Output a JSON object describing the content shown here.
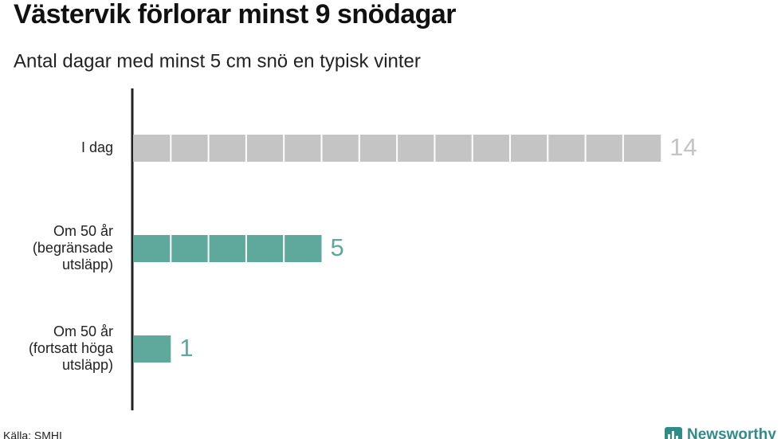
{
  "chart_data": {
    "type": "bar",
    "orientation": "horizontal",
    "title": "Västervik förlorar minst 9 snödagar",
    "subtitle": "Antal dagar med minst 5 cm snö en typisk vinter",
    "categories": [
      [
        "I dag"
      ],
      [
        "Om 50 år",
        "(begränsade",
        "utsläpp)"
      ],
      [
        "Om 50 år",
        "(fortsatt höga",
        "utsläpp)"
      ]
    ],
    "values": [
      14,
      5,
      1
    ],
    "colors": [
      "#c4c4c4",
      "#5fa89c",
      "#5fa89c"
    ],
    "source": "Källa: SMHI",
    "brand": "Newsworthy"
  }
}
